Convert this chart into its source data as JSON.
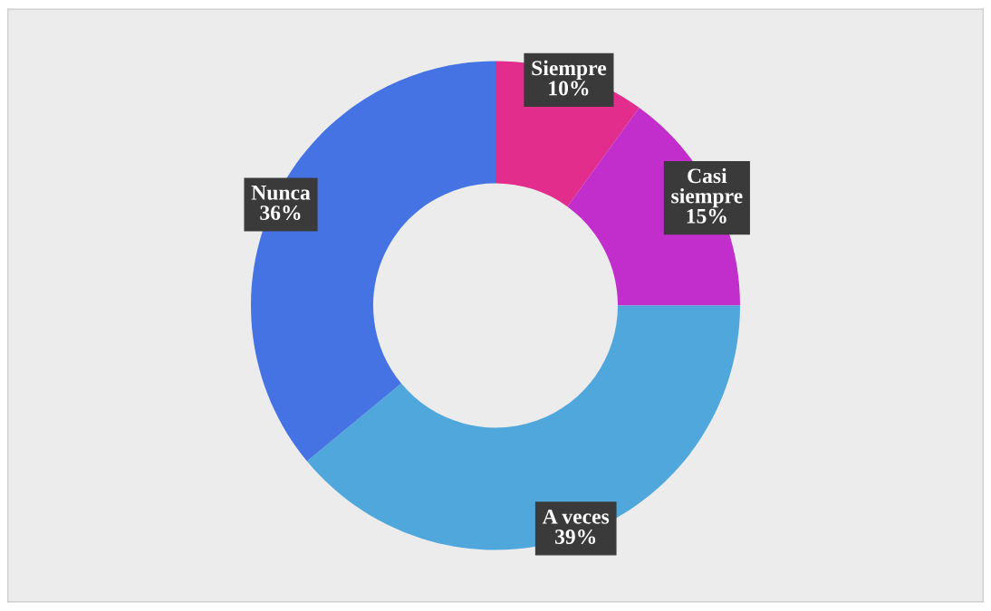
{
  "chart_data": {
    "type": "donut",
    "categories": [
      "Siempre",
      "Casi siempre",
      "A veces",
      "Nunca"
    ],
    "values": [
      10,
      15,
      39,
      36
    ],
    "colors": [
      "#e22d8c",
      "#c22ecb",
      "#4fa7dc",
      "#4673e4"
    ],
    "value_labels": [
      "10%",
      "15%",
      "39%",
      "36%"
    ],
    "legend": false
  }
}
